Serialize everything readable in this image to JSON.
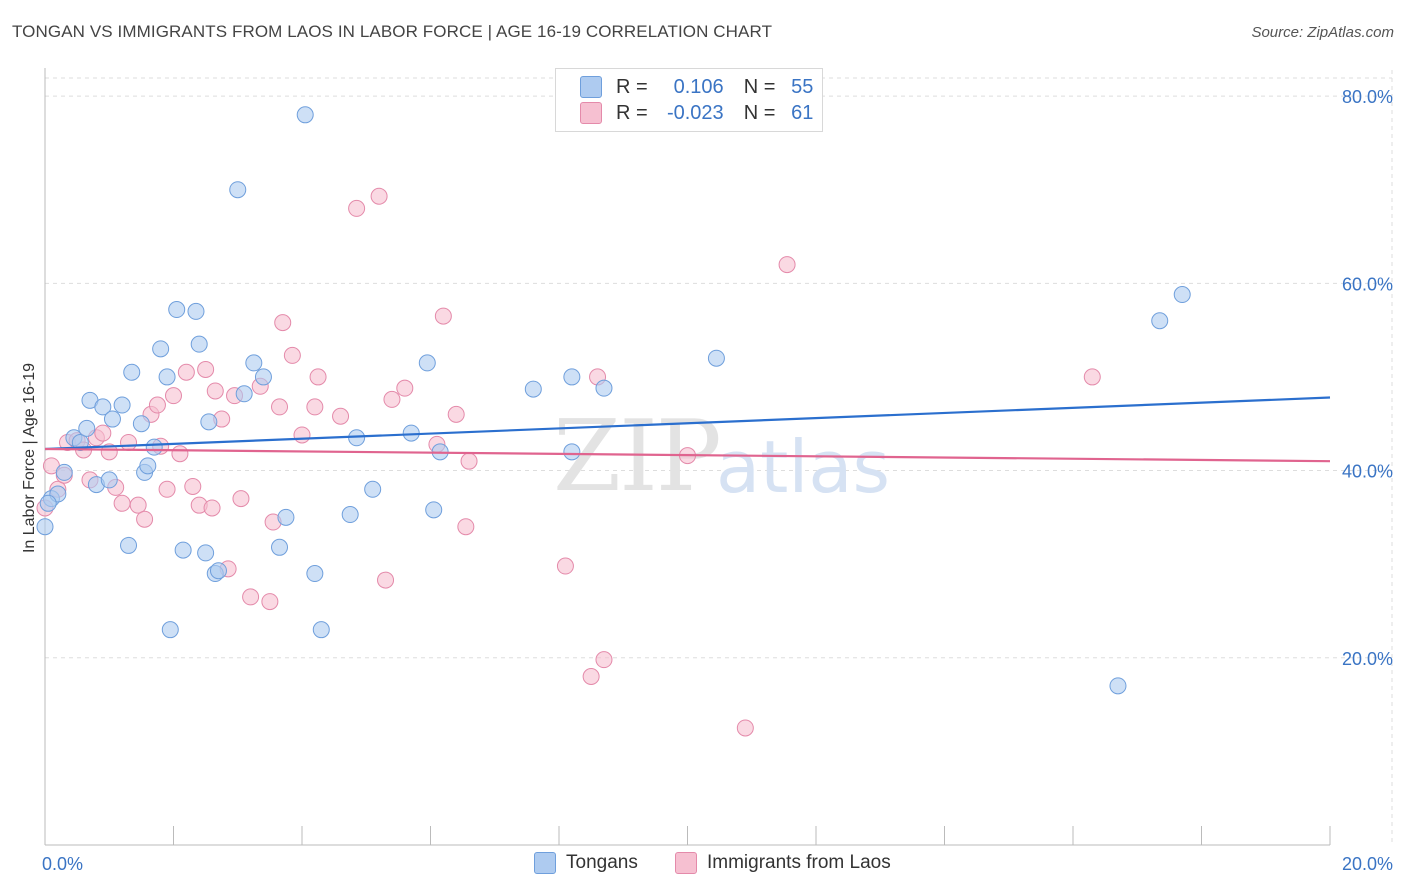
{
  "title": "TONGAN VS IMMIGRANTS FROM LAOS IN LABOR FORCE | AGE 16-19 CORRELATION CHART",
  "source": "Source: ZipAtlas.com",
  "colors": {
    "blue_fill": "#aecbf0",
    "blue_stroke": "#6f9fdc",
    "blue_line": "#2b6fce",
    "pink_fill": "#f6c0d1",
    "pink_stroke": "#e48aaa",
    "pink_line": "#e0648f",
    "axis_label": "#3a74c4",
    "grid": "#dddddd"
  },
  "legend": {
    "rows": [
      {
        "r_label": "R =",
        "r_value": "0.106",
        "n_label": "N =",
        "n_value": "55"
      },
      {
        "r_label": "R =",
        "r_value": "-0.023",
        "n_label": "N =",
        "n_value": "61"
      }
    ]
  },
  "bottom_legend": {
    "series1": "Tongans",
    "series2": "Immigrants from Laos"
  },
  "watermark": {
    "zip": "ZIP",
    "atlas": "atlas"
  },
  "chart_data": {
    "type": "scatter",
    "title": "TONGAN VS IMMIGRANTS FROM LAOS IN LABOR FORCE | AGE 16-19 CORRELATION CHART",
    "xlabel": "",
    "ylabel": "In Labor Force | Age 16-19",
    "xlim": [
      0,
      20
    ],
    "ylim": [
      0,
      83
    ],
    "x_tick_labels": [
      "0.0%",
      "20.0%"
    ],
    "y_ticks": [
      20,
      40,
      60,
      80
    ],
    "y_tick_labels": [
      "20.0%",
      "40.0%",
      "60.0%",
      "80.0%"
    ],
    "series": [
      {
        "name": "Tongans",
        "R": 0.106,
        "N": 55,
        "trend": {
          "x": [
            0,
            20
          ],
          "y": [
            42.3,
            47.8
          ]
        },
        "points": [
          [
            0.0,
            34.0
          ],
          [
            0.1,
            37.0
          ],
          [
            0.2,
            37.5
          ],
          [
            0.3,
            39.8
          ],
          [
            0.45,
            43.5
          ],
          [
            0.55,
            43.0
          ],
          [
            0.65,
            44.5
          ],
          [
            0.7,
            47.5
          ],
          [
            0.8,
            38.5
          ],
          [
            0.9,
            46.8
          ],
          [
            1.0,
            39.0
          ],
          [
            1.05,
            45.5
          ],
          [
            1.2,
            47.0
          ],
          [
            1.3,
            32.0
          ],
          [
            1.35,
            50.5
          ],
          [
            1.5,
            45.0
          ],
          [
            1.55,
            39.8
          ],
          [
            1.6,
            40.5
          ],
          [
            1.7,
            42.5
          ],
          [
            1.8,
            53.0
          ],
          [
            1.9,
            50.0
          ],
          [
            1.95,
            23.0
          ],
          [
            2.05,
            57.2
          ],
          [
            2.15,
            31.5
          ],
          [
            2.35,
            57.0
          ],
          [
            2.4,
            53.5
          ],
          [
            2.5,
            31.2
          ],
          [
            2.55,
            45.2
          ],
          [
            2.65,
            29.0
          ],
          [
            2.7,
            29.3
          ],
          [
            3.0,
            70.0
          ],
          [
            3.1,
            48.2
          ],
          [
            3.25,
            51.5
          ],
          [
            3.4,
            50.0
          ],
          [
            3.65,
            31.8
          ],
          [
            3.75,
            35.0
          ],
          [
            4.05,
            78.0
          ],
          [
            4.2,
            29.0
          ],
          [
            4.3,
            23.0
          ],
          [
            4.75,
            35.3
          ],
          [
            4.85,
            43.5
          ],
          [
            5.1,
            38.0
          ],
          [
            5.7,
            44.0
          ],
          [
            5.95,
            51.5
          ],
          [
            6.05,
            35.8
          ],
          [
            6.15,
            42.0
          ],
          [
            7.6,
            48.7
          ],
          [
            8.2,
            50.0
          ],
          [
            8.2,
            42.0
          ],
          [
            8.7,
            48.8
          ],
          [
            10.45,
            52.0
          ],
          [
            16.7,
            17.0
          ],
          [
            17.35,
            56.0
          ],
          [
            17.7,
            58.8
          ],
          [
            0.05,
            36.5
          ]
        ]
      },
      {
        "name": "Immigrants from Laos",
        "R": -0.023,
        "N": 61,
        "trend": {
          "x": [
            0,
            20
          ],
          "y": [
            42.3,
            41.0
          ]
        },
        "points": [
          [
            0.0,
            36.0
          ],
          [
            0.1,
            40.5
          ],
          [
            0.2,
            38.0
          ],
          [
            0.3,
            39.5
          ],
          [
            0.35,
            43.0
          ],
          [
            0.5,
            43.2
          ],
          [
            0.6,
            42.2
          ],
          [
            0.7,
            39.0
          ],
          [
            0.8,
            43.5
          ],
          [
            0.9,
            44.0
          ],
          [
            1.0,
            42.0
          ],
          [
            1.1,
            38.2
          ],
          [
            1.2,
            36.5
          ],
          [
            1.3,
            43.0
          ],
          [
            1.45,
            36.3
          ],
          [
            1.55,
            34.8
          ],
          [
            1.65,
            46.0
          ],
          [
            1.75,
            47.0
          ],
          [
            1.8,
            42.6
          ],
          [
            1.9,
            38.0
          ],
          [
            2.0,
            48.0
          ],
          [
            2.1,
            41.8
          ],
          [
            2.2,
            50.5
          ],
          [
            2.3,
            38.3
          ],
          [
            2.4,
            36.3
          ],
          [
            2.5,
            50.8
          ],
          [
            2.6,
            36.0
          ],
          [
            2.65,
            48.5
          ],
          [
            2.75,
            45.5
          ],
          [
            2.85,
            29.5
          ],
          [
            2.95,
            48.0
          ],
          [
            3.05,
            37.0
          ],
          [
            3.2,
            26.5
          ],
          [
            3.35,
            49.0
          ],
          [
            3.5,
            26.0
          ],
          [
            3.55,
            34.5
          ],
          [
            3.65,
            46.8
          ],
          [
            3.7,
            55.8
          ],
          [
            3.85,
            52.3
          ],
          [
            4.0,
            43.8
          ],
          [
            4.2,
            46.8
          ],
          [
            4.25,
            50.0
          ],
          [
            4.6,
            45.8
          ],
          [
            4.85,
            68.0
          ],
          [
            5.2,
            69.3
          ],
          [
            5.3,
            28.3
          ],
          [
            5.4,
            47.6
          ],
          [
            5.6,
            48.8
          ],
          [
            6.1,
            42.8
          ],
          [
            6.2,
            56.5
          ],
          [
            6.4,
            46.0
          ],
          [
            6.55,
            34.0
          ],
          [
            6.6,
            41.0
          ],
          [
            8.1,
            29.8
          ],
          [
            8.5,
            18.0
          ],
          [
            8.6,
            50.0
          ],
          [
            8.7,
            19.8
          ],
          [
            10.0,
            41.6
          ],
          [
            10.9,
            12.5
          ],
          [
            11.55,
            62.0
          ],
          [
            16.3,
            50.0
          ]
        ]
      }
    ]
  }
}
